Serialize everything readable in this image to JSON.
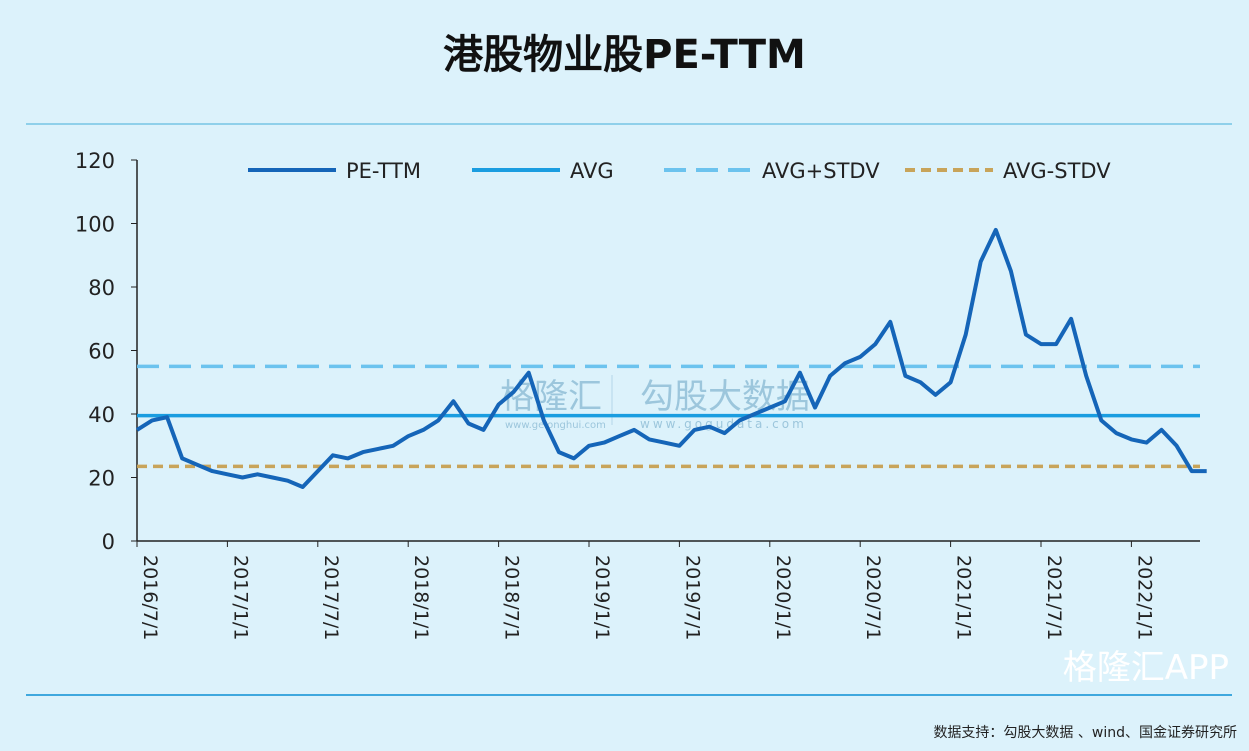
{
  "chart_data": {
    "type": "line",
    "title": "港股物业股PE-TTM",
    "xlabel": "",
    "ylabel": "",
    "ylim": [
      0,
      120
    ],
    "yticks": [
      0,
      20,
      40,
      60,
      80,
      100,
      120
    ],
    "xticks": [
      "2016/7/1",
      "2017/1/1",
      "2017/7/1",
      "2018/1/1",
      "2018/7/1",
      "2019/1/1",
      "2019/7/1",
      "2020/1/1",
      "2020/7/1",
      "2021/1/1",
      "2021/7/1",
      "2022/1/1"
    ],
    "grid": false,
    "legend_position": "top",
    "x_start": "2016/7",
    "x_step": "monthly",
    "series": [
      {
        "name": "PE-TTM",
        "color": "#1565b8",
        "style": "solid",
        "values": [
          35,
          38,
          39,
          26,
          24,
          22,
          21,
          20,
          21,
          20,
          19,
          17,
          22,
          27,
          26,
          28,
          29,
          30,
          33,
          35,
          38,
          44,
          37,
          35,
          43,
          47,
          53,
          38,
          28,
          26,
          30,
          31,
          33,
          35,
          32,
          31,
          30,
          35,
          36,
          34,
          38,
          40,
          42,
          44,
          53,
          42,
          52,
          56,
          58,
          62,
          69,
          52,
          50,
          46,
          50,
          65,
          88,
          98,
          85,
          65,
          62,
          62,
          70,
          52,
          38,
          34,
          32,
          31,
          35,
          30,
          22,
          22
        ]
      },
      {
        "name": "AVG",
        "color": "#1a9de0",
        "style": "solid",
        "value": 39.5
      },
      {
        "name": "AVG+STDV",
        "color": "#6cc3ee",
        "style": "dashed",
        "value": 55
      },
      {
        "name": "AVG-STDV",
        "color": "#c8a45a",
        "style": "dotted",
        "value": 23.5
      }
    ]
  },
  "watermark": {
    "center_left": "格隆汇",
    "center_left_url": "www.gelonghui.com",
    "center_right": "勾股大数据",
    "center_right_url": "www.gogudata.com",
    "corner": "格隆汇APP"
  },
  "footer": "数据支持：勾股大数据 、wind、国金证券研究所"
}
